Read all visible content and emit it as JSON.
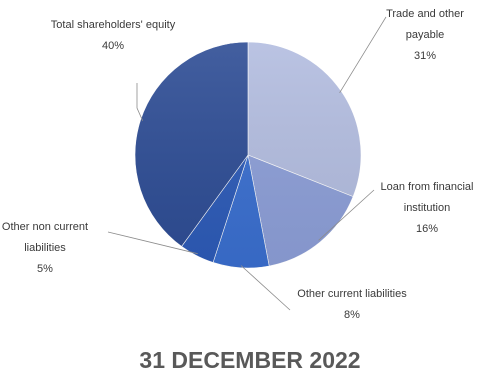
{
  "chart_data": {
    "type": "pie",
    "title": "31 DECEMBER 2022",
    "slices": [
      {
        "label": [
          "Trade and other",
          "payable"
        ],
        "percent_label": "31%",
        "value": 31,
        "color": "#b3bde0"
      },
      {
        "label": [
          "Loan from financial",
          "institution"
        ],
        "percent_label": "16%",
        "value": 16,
        "color": "#8d9fd8"
      },
      {
        "label": [
          "Other current liabilities"
        ],
        "percent_label": "8%",
        "value": 8,
        "color": "#3a6fd0"
      },
      {
        "label": [
          "Other non current",
          "liabilities"
        ],
        "percent_label": "5%",
        "value": 5,
        "color": "#2d5bb8"
      },
      {
        "label": [
          "Total shareholders' equity"
        ],
        "percent_label": "40%",
        "value": 40,
        "color": "#2e4d95"
      }
    ]
  }
}
